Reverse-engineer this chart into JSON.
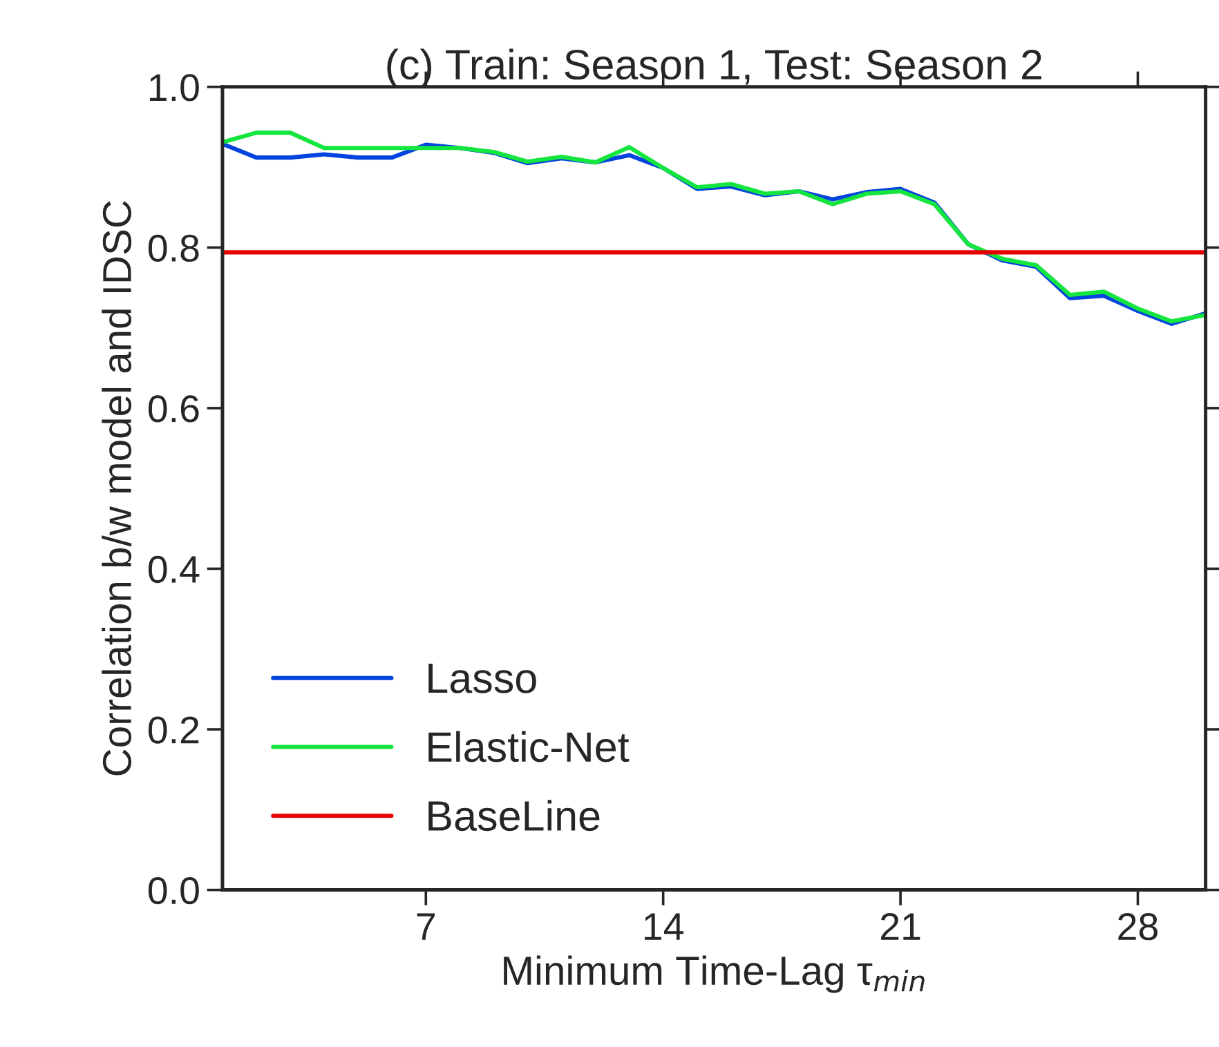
{
  "chart_data": {
    "type": "line",
    "title": "(c) Train: Season 1, Test: Season 2",
    "xlabel": "Minimum Time-Lag τ$_{min}$",
    "ylabel": "Correlation b/w model and IDSC",
    "x": [
      1,
      2,
      3,
      4,
      5,
      6,
      7,
      8,
      9,
      10,
      11,
      12,
      13,
      14,
      15,
      16,
      17,
      18,
      19,
      20,
      21,
      22,
      23,
      24,
      25,
      26,
      27,
      28,
      29,
      30
    ],
    "series": [
      {
        "name": "Lasso",
        "color": "#0343df",
        "values": [
          0.929,
          0.912,
          0.912,
          0.916,
          0.912,
          0.912,
          0.928,
          0.924,
          0.918,
          0.905,
          0.911,
          0.906,
          0.915,
          0.899,
          0.873,
          0.876,
          0.865,
          0.87,
          0.86,
          0.869,
          0.873,
          0.856,
          0.804,
          0.784,
          0.776,
          0.737,
          0.74,
          0.721,
          0.705,
          0.718
        ]
      },
      {
        "name": "Elastic-Net",
        "color": "#15e53f",
        "values": [
          0.931,
          0.943,
          0.943,
          0.924,
          0.924,
          0.924,
          0.924,
          0.924,
          0.919,
          0.907,
          0.913,
          0.906,
          0.925,
          0.899,
          0.875,
          0.879,
          0.867,
          0.87,
          0.854,
          0.867,
          0.87,
          0.854,
          0.804,
          0.786,
          0.778,
          0.741,
          0.745,
          0.724,
          0.708,
          0.716
        ]
      }
    ],
    "ref_lines": [
      {
        "axis": "y",
        "value": 0.794,
        "label": "BaseLine",
        "color": "#e50000"
      }
    ],
    "xlim": [
      1,
      30
    ],
    "xticks": [
      7,
      14,
      21,
      28
    ],
    "ylim": [
      0.0,
      1.0
    ],
    "yticks": [
      {
        "value": 0.0,
        "label": "0.0"
      },
      {
        "value": 0.2,
        "label": "0.2"
      },
      {
        "value": 0.4,
        "label": "0.4"
      },
      {
        "value": 0.6,
        "label": "0.6"
      },
      {
        "value": 0.8,
        "label": "0.8"
      },
      {
        "value": 1.0,
        "label": "1.0"
      }
    ],
    "legend": "bottom left",
    "grid": false,
    "marker": "none",
    "line_style": "solid"
  }
}
